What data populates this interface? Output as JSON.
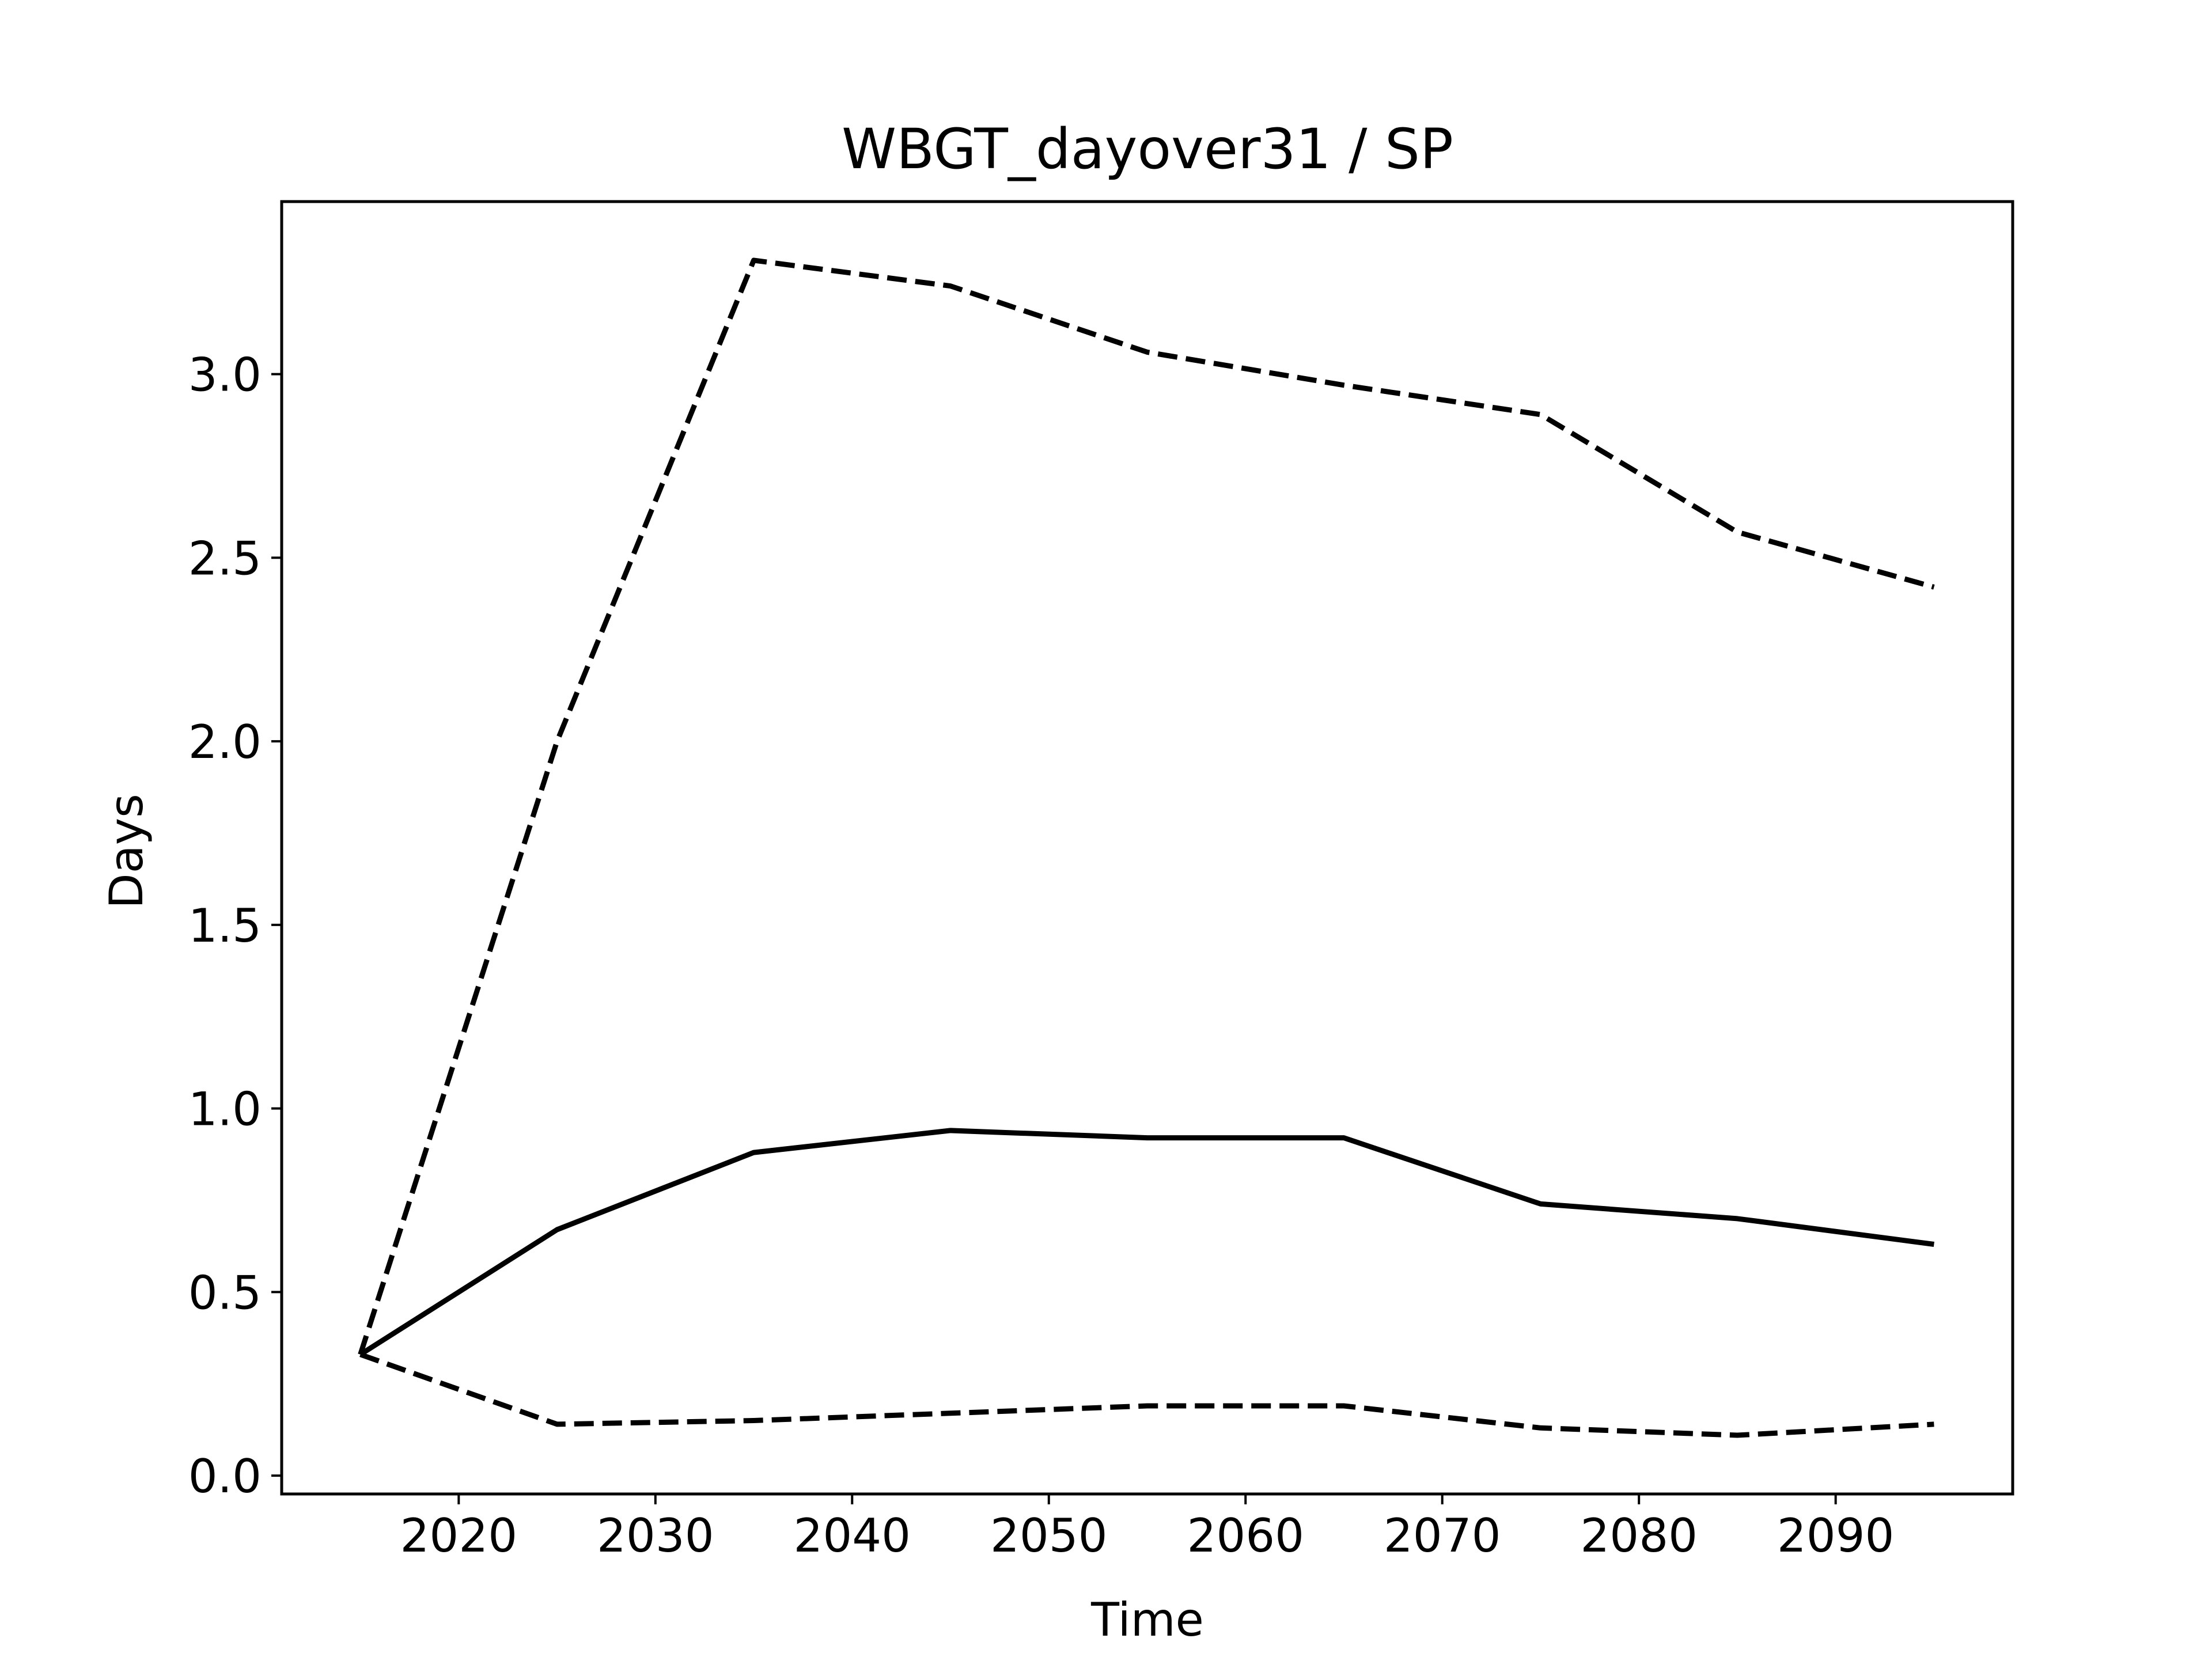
{
  "chart_data": {
    "type": "line",
    "title": "WBGT_dayover31 / SP",
    "xlabel": "Time",
    "ylabel": "Days",
    "xlim": [
      2011,
      2099
    ],
    "ylim": [
      -0.05,
      3.47
    ],
    "xticks": [
      2020,
      2030,
      2040,
      2050,
      2060,
      2070,
      2080,
      2090
    ],
    "xtick_labels": [
      "2020",
      "2030",
      "2040",
      "2050",
      "2060",
      "2070",
      "2080",
      "2090"
    ],
    "yticks": [
      0.0,
      0.5,
      1.0,
      1.5,
      2.0,
      2.5,
      3.0
    ],
    "ytick_labels": [
      "0.0",
      "0.5",
      "1.0",
      "1.5",
      "2.0",
      "2.5",
      "3.0"
    ],
    "grid": false,
    "legend": "none",
    "x": [
      2015,
      2025,
      2035,
      2045,
      2055,
      2065,
      2075,
      2085,
      2095
    ],
    "series": [
      {
        "style": "solid",
        "color": "#000000",
        "values": [
          0.33,
          0.67,
          0.88,
          0.94,
          0.92,
          0.92,
          0.74,
          0.7,
          0.63
        ]
      },
      {
        "style": "dashed",
        "color": "#000000",
        "values": [
          0.33,
          2.0,
          3.31,
          3.24,
          3.06,
          2.97,
          2.89,
          2.57,
          2.42
        ]
      },
      {
        "style": "dashed",
        "color": "#000000",
        "values": [
          0.33,
          0.14,
          0.15,
          0.17,
          0.19,
          0.19,
          0.13,
          0.11,
          0.14
        ]
      }
    ]
  }
}
